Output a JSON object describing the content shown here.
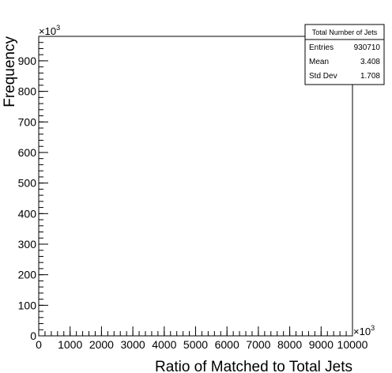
{
  "chart_data": {
    "type": "bar",
    "title": "",
    "xlabel": "Ratio of Matched to Total Jets",
    "ylabel": "Frequency",
    "x_multiplier": "×10",
    "x_multiplier_exp": "3",
    "y_multiplier": "×10",
    "y_multiplier_exp": "3",
    "xlim": [
      0,
      10000
    ],
    "ylim": [
      0,
      980
    ],
    "x_ticks": [
      0,
      1000,
      2000,
      3000,
      4000,
      5000,
      6000,
      7000,
      8000,
      9000,
      10000
    ],
    "y_ticks": [
      0,
      100,
      200,
      300,
      400,
      500,
      600,
      700,
      800,
      900
    ],
    "x_tick_labels": [
      "0",
      "1000",
      "2000",
      "3000",
      "4000",
      "5000",
      "6000",
      "7000",
      "8000",
      "9000",
      "10000"
    ],
    "y_tick_labels": [
      "0",
      "100",
      "200",
      "300",
      "400",
      "500",
      "600",
      "700",
      "800",
      "900"
    ],
    "bins": [
      {
        "x_low": 0,
        "x_high": 10000,
        "value": 0
      }
    ],
    "stats_box": {
      "title": "Total Number of Jets",
      "rows": [
        {
          "label": "Entries",
          "value": "930710"
        },
        {
          "label": "Mean",
          "value": "3.408"
        },
        {
          "label": "Std Dev",
          "value": "1.708"
        }
      ]
    }
  }
}
